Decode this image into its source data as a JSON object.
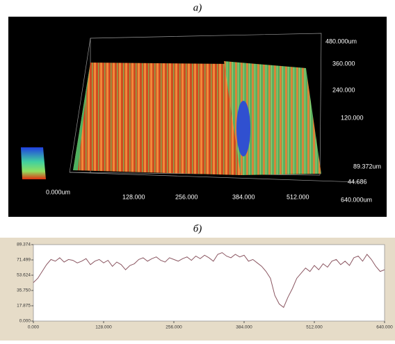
{
  "panel_a": {
    "caption": "а)",
    "labels": [
      "480.000um",
      "360.000",
      "240.000",
      "120.000",
      "89.372um",
      "44.686",
      "0.000um",
      "128.000",
      "256.000",
      "384.000",
      "512.000",
      "640.000um"
    ]
  },
  "chart_data": {
    "type": "line",
    "title": "б)",
    "color": "#8a5560",
    "x": [
      0,
      8,
      16,
      24,
      32,
      40,
      48,
      56,
      64,
      72,
      80,
      88,
      96,
      104,
      112,
      120,
      128,
      136,
      144,
      152,
      160,
      168,
      176,
      184,
      192,
      200,
      208,
      216,
      224,
      232,
      240,
      248,
      256,
      264,
      272,
      280,
      288,
      296,
      304,
      312,
      320,
      328,
      336,
      344,
      352,
      360,
      368,
      376,
      384,
      392,
      400,
      408,
      416,
      424,
      432,
      440,
      448,
      456,
      464,
      472,
      480,
      488,
      496,
      504,
      512,
      520,
      528,
      536,
      544,
      552,
      560,
      568,
      576,
      584,
      592,
      600,
      608,
      616,
      624,
      632,
      640
    ],
    "values": [
      45,
      50,
      58,
      66,
      72,
      70,
      74,
      69,
      72,
      71,
      68,
      70,
      73,
      66,
      70,
      72,
      68,
      71,
      64,
      69,
      66,
      60,
      65,
      67,
      72,
      74,
      70,
      73,
      75,
      71,
      69,
      74,
      72,
      70,
      73,
      75,
      71,
      76,
      73,
      77,
      74,
      70,
      78,
      80,
      76,
      74,
      78,
      75,
      77,
      70,
      72,
      68,
      64,
      58,
      50,
      30,
      20,
      16,
      28,
      38,
      50,
      56,
      62,
      58,
      65,
      60,
      67,
      63,
      70,
      72,
      66,
      70,
      65,
      74,
      76,
      70,
      78,
      72,
      64,
      58,
      60
    ],
    "xlim": [
      0,
      640
    ],
    "ylim": [
      0,
      89.374
    ],
    "xticks": [
      {
        "value": 0,
        "label": "0.000"
      },
      {
        "value": 128,
        "label": "128.000"
      },
      {
        "value": 256,
        "label": "256.000"
      },
      {
        "value": 384,
        "label": "384.000"
      },
      {
        "value": 512,
        "label": "512.000"
      },
      {
        "value": 640,
        "label": "640.000"
      }
    ],
    "yticks": [
      {
        "value": 0,
        "label": "0.000"
      },
      {
        "value": 17.875,
        "label": "17.875"
      },
      {
        "value": 35.75,
        "label": "35.750"
      },
      {
        "value": 53.624,
        "label": "53.624"
      },
      {
        "value": 71.499,
        "label": "71.499"
      },
      {
        "value": 89.374,
        "label": "89.374"
      }
    ]
  }
}
